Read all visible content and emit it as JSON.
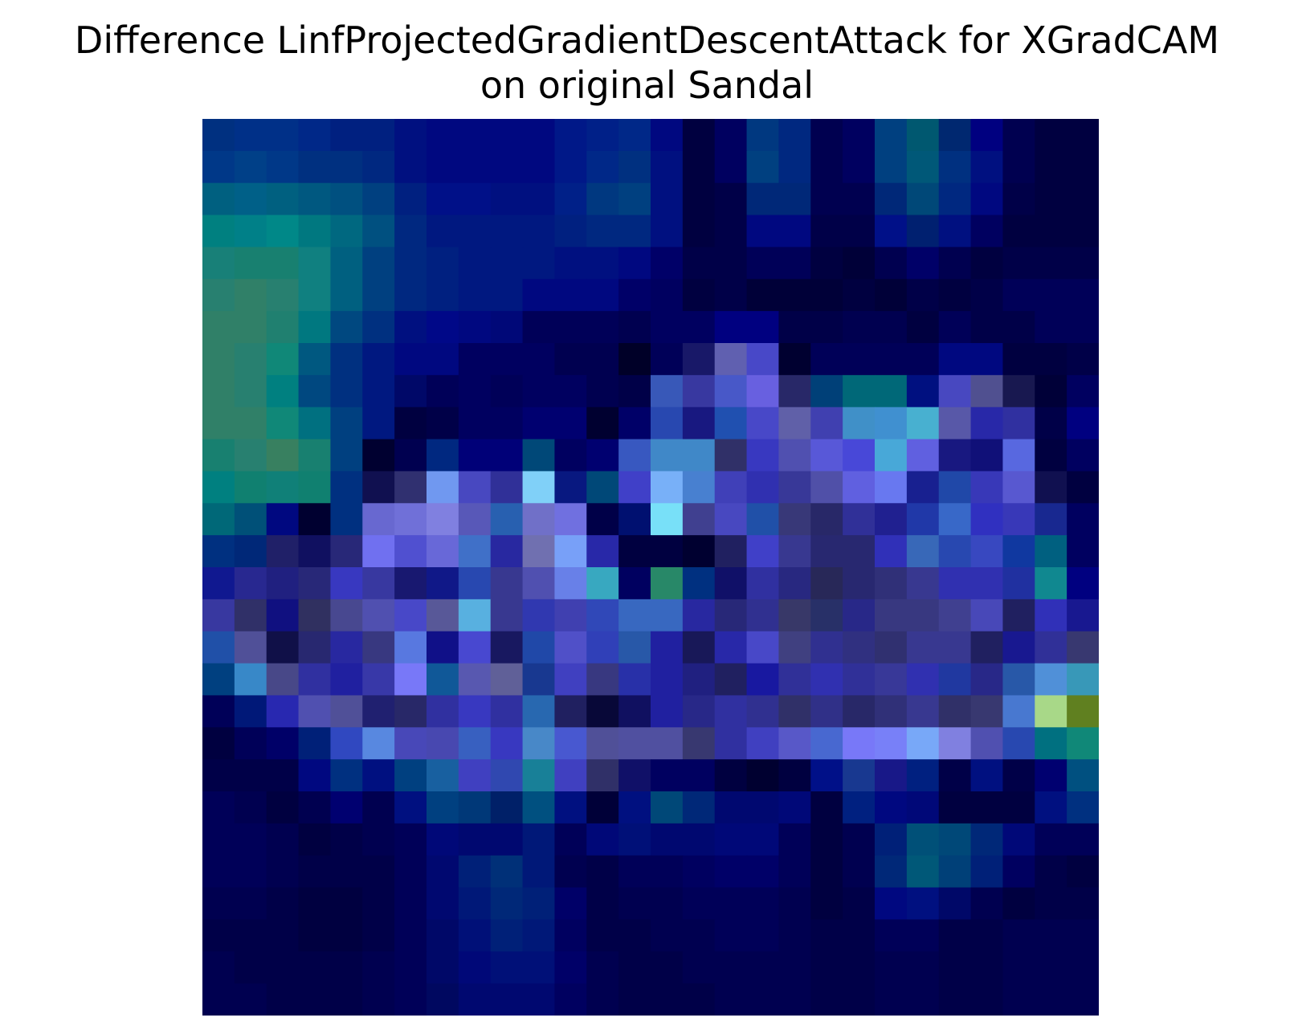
{
  "title_lines": [
    "Difference LinfProjectedGradientDescentAttack for XGradCAM",
    "on original Sandal"
  ],
  "chart_data": {
    "type": "heatmap",
    "title": "Difference LinfProjectedGradientDescentAttack for XGradCAM on original Sandal",
    "rows": 28,
    "cols": 28,
    "axes": "off",
    "grid": false,
    "legend": "none",
    "colors": [
      [
        "#003080",
        "#003088",
        "#003088",
        "#002888",
        "#002080",
        "#002080",
        "#001080",
        "#000880",
        "#000880",
        "#000880",
        "#000880",
        "#001888",
        "#002088",
        "#002888",
        "#000880",
        "#000040",
        "#000060",
        "#003880",
        "#002880",
        "#000050",
        "#000060",
        "#004080",
        "#005870",
        "#002870",
        "#000080",
        "#000050",
        "#000040",
        "#000040"
      ],
      [
        "#003888",
        "#004088",
        "#003888",
        "#003080",
        "#003080",
        "#002880",
        "#001080",
        "#000880",
        "#000880",
        "#000880",
        "#000880",
        "#001888",
        "#002888",
        "#003080",
        "#001080",
        "#000040",
        "#000060",
        "#004080",
        "#002880",
        "#000050",
        "#000060",
        "#004080",
        "#005878",
        "#003080",
        "#001080",
        "#000050",
        "#000040",
        "#000040"
      ],
      [
        "#006080",
        "#006088",
        "#006080",
        "#005880",
        "#005080",
        "#004080",
        "#002080",
        "#001088",
        "#001088",
        "#001080",
        "#001080",
        "#002088",
        "#003880",
        "#004080",
        "#001080",
        "#000040",
        "#000048",
        "#002878",
        "#002878",
        "#000050",
        "#000050",
        "#002878",
        "#004878",
        "#002880",
        "#000880",
        "#000048",
        "#000040",
        "#000040"
      ],
      [
        "#008080",
        "#008088",
        "#008888",
        "#007880",
        "#006880",
        "#005080",
        "#002880",
        "#001880",
        "#001880",
        "#001880",
        "#001880",
        "#002080",
        "#002880",
        "#002880",
        "#001080",
        "#000040",
        "#000048",
        "#000880",
        "#000880",
        "#000048",
        "#000048",
        "#001088",
        "#002070",
        "#001080",
        "#000060",
        "#000040",
        "#000040",
        "#000040"
      ],
      [
        "#188078",
        "#188070",
        "#188070",
        "#108080",
        "#006080",
        "#004080",
        "#002880",
        "#002080",
        "#001880",
        "#001880",
        "#001880",
        "#001080",
        "#001080",
        "#000880",
        "#000068",
        "#000048",
        "#000048",
        "#000058",
        "#000058",
        "#000040",
        "#000038",
        "#000050",
        "#000068",
        "#000050",
        "#000040",
        "#000048",
        "#000048",
        "#000048"
      ],
      [
        "#288070",
        "#308068",
        "#288070",
        "#108080",
        "#006080",
        "#004080",
        "#002880",
        "#002080",
        "#001880",
        "#001880",
        "#000880",
        "#000880",
        "#000880",
        "#000068",
        "#000060",
        "#000040",
        "#000048",
        "#000038",
        "#000038",
        "#000038",
        "#000040",
        "#000038",
        "#000048",
        "#000040",
        "#000048",
        "#000058",
        "#000058",
        "#000058"
      ],
      [
        "#308068",
        "#308068",
        "#208070",
        "#007880",
        "#004880",
        "#003080",
        "#001080",
        "#000888",
        "#000880",
        "#000878",
        "#000058",
        "#000058",
        "#000058",
        "#000050",
        "#000060",
        "#000060",
        "#000080",
        "#000080",
        "#000048",
        "#000048",
        "#000050",
        "#000050",
        "#000040",
        "#000058",
        "#000048",
        "#000048",
        "#000058",
        "#000058"
      ],
      [
        "#308068",
        "#288070",
        "#108878",
        "#005880",
        "#003080",
        "#001880",
        "#000880",
        "#000880",
        "#000060",
        "#000060",
        "#000060",
        "#000050",
        "#000050",
        "#000028",
        "#000058",
        "#181868",
        "#6060b0",
        "#4848c8",
        "#000030",
        "#000058",
        "#000058",
        "#000058",
        "#000058",
        "#000880",
        "#000880",
        "#000040",
        "#000040",
        "#000048"
      ],
      [
        "#308068",
        "#288070",
        "#008080",
        "#004880",
        "#003080",
        "#001880",
        "#000868",
        "#000058",
        "#000060",
        "#000058",
        "#000060",
        "#000060",
        "#000050",
        "#000048",
        "#3858b8",
        "#3838a0",
        "#4858c8",
        "#6860e0",
        "#282868",
        "#004078",
        "#006878",
        "#006878",
        "#001080",
        "#4848c0",
        "#505090",
        "#181850",
        "#000038",
        "#000060"
      ],
      [
        "#308068",
        "#308068",
        "#108878",
        "#007080",
        "#004080",
        "#001880",
        "#000040",
        "#000048",
        "#000060",
        "#000060",
        "#000070",
        "#000070",
        "#000030",
        "#000068",
        "#2848b0",
        "#181880",
        "#2050b0",
        "#4848c8",
        "#6060a8",
        "#4040b0",
        "#4090c8",
        "#4090d0",
        "#48b0d0",
        "#5858a8",
        "#2828a8",
        "#3030a0",
        "#000048",
        "#000080"
      ],
      [
        "#188070",
        "#288070",
        "#388060",
        "#188070",
        "#004080",
        "#000030",
        "#000050",
        "#002880",
        "#000078",
        "#000078",
        "#004878",
        "#000060",
        "#000070",
        "#3858c0",
        "#4088c8",
        "#4088c8",
        "#303068",
        "#3838c0",
        "#5050b0",
        "#5858d8",
        "#4848d8",
        "#48a8d8",
        "#6060e0",
        "#181880",
        "#101078",
        "#5868e0",
        "#000040",
        "#000060"
      ],
      [
        "#008080",
        "#108070",
        "#108078",
        "#108070",
        "#003080",
        "#101050",
        "#303070",
        "#7098f0",
        "#4848c0",
        "#303098",
        "#80d0f8",
        "#081880",
        "#004878",
        "#4040c8",
        "#78b0f8",
        "#4880d0",
        "#4040b8",
        "#3030b0",
        "#383898",
        "#5050a8",
        "#6060e0",
        "#6878f0",
        "#182090",
        "#2048a8",
        "#3838b8",
        "#5858d0",
        "#101050",
        "#000040"
      ],
      [
        "#006878",
        "#005078",
        "#000880",
        "#000030",
        "#003080",
        "#6868d0",
        "#7070d8",
        "#8080e0",
        "#5858b8",
        "#2860b0",
        "#7070c8",
        "#7070e0",
        "#000048",
        "#001070",
        "#78e0f8",
        "#404090",
        "#4848c0",
        "#2050a8",
        "#383878",
        "#282868",
        "#303098",
        "#202090",
        "#2038a8",
        "#3868c8",
        "#3030c0",
        "#3838b8",
        "#182890",
        "#000060"
      ],
      [
        "#003080",
        "#002878",
        "#202068",
        "#101060",
        "#282878",
        "#7070f0",
        "#5050d0",
        "#6868d8",
        "#4070c8",
        "#2828a0",
        "#7070b0",
        "#78a0f8",
        "#2828a8",
        "#000040",
        "#000040",
        "#000030",
        "#202060",
        "#4040c8",
        "#383890",
        "#282870",
        "#282870",
        "#3030b8",
        "#3868b8",
        "#2848b0",
        "#3848c0",
        "#1038a0",
        "#006080",
        "#000060"
      ],
      [
        "#101890",
        "#282890",
        "#202080",
        "#282878",
        "#3838c0",
        "#3838a0",
        "#181870",
        "#101888",
        "#2848b0",
        "#383890",
        "#5050b0",
        "#6880e8",
        "#38a8c0",
        "#000060",
        "#288868",
        "#003080",
        "#101068",
        "#3030a0",
        "#282880",
        "#282858",
        "#282870",
        "#303078",
        "#383890",
        "#3030b0",
        "#3030b0",
        "#2030a0",
        "#108890",
        "#000080"
      ],
      [
        "#3838a0",
        "#303068",
        "#101080",
        "#303060",
        "#484890",
        "#5050b0",
        "#4848c8",
        "#585898",
        "#58b0e0",
        "#383890",
        "#3038b0",
        "#4040b0",
        "#3048b8",
        "#3868c0",
        "#3868c0",
        "#2828a0",
        "#282878",
        "#303090",
        "#383868",
        "#283068",
        "#282888",
        "#383880",
        "#383880",
        "#404090",
        "#4848b8",
        "#202060",
        "#3030b8",
        "#181890"
      ],
      [
        "#2050a8",
        "#505098",
        "#101048",
        "#282870",
        "#2828a0",
        "#383880",
        "#5878e0",
        "#101088",
        "#4848d0",
        "#181860",
        "#2048a8",
        "#5050c8",
        "#3040b8",
        "#2858a8",
        "#2020a0",
        "#181858",
        "#2828a8",
        "#4848c8",
        "#404080",
        "#303090",
        "#303080",
        "#303070",
        "#383890",
        "#383890",
        "#202060",
        "#181890",
        "#303098",
        "#383870"
      ],
      [
        "#004080",
        "#3888c8",
        "#484888",
        "#3030a0",
        "#2020a0",
        "#3838a8",
        "#7878f8",
        "#105898",
        "#5858b0",
        "#606098",
        "#183890",
        "#4040c0",
        "#383880",
        "#2830a8",
        "#2020a0",
        "#202080",
        "#202060",
        "#1818a0",
        "#303098",
        "#3030b0",
        "#303098",
        "#383898",
        "#3030b0",
        "#2038a0",
        "#282888",
        "#2858a8",
        "#5090d8",
        "#3898b8"
      ],
      [
        "#000058",
        "#001878",
        "#2828b0",
        "#5050b0",
        "#505098",
        "#202070",
        "#282868",
        "#3030a0",
        "#3838c0",
        "#3030a0",
        "#2868b0",
        "#202060",
        "#080838",
        "#101060",
        "#2020a0",
        "#282888",
        "#3030a0",
        "#303090",
        "#303068",
        "#303088",
        "#282868",
        "#303078",
        "#383890",
        "#303068",
        "#383870",
        "#4878d0",
        "#a8d888",
        "#608020"
      ],
      [
        "#000040",
        "#000058",
        "#000068",
        "#002078",
        "#3048c0",
        "#5888e0",
        "#4848b8",
        "#4848b0",
        "#3860c0",
        "#3838c0",
        "#4888c8",
        "#4858d0",
        "#505098",
        "#5050a0",
        "#5050a0",
        "#383870",
        "#3030a0",
        "#4040c0",
        "#5858c8",
        "#4868d0",
        "#7878f8",
        "#7880f8",
        "#78a8f8",
        "#8080e0",
        "#5050b0",
        "#2848b0",
        "#007080",
        "#108878"
      ],
      [
        "#000048",
        "#000048",
        "#000048",
        "#000880",
        "#003080",
        "#001080",
        "#004080",
        "#1860a0",
        "#4040c0",
        "#3048b0",
        "#188098",
        "#4040c0",
        "#303068",
        "#101068",
        "#000060",
        "#000060",
        "#000040",
        "#000030",
        "#000040",
        "#001088",
        "#183890",
        "#181888",
        "#002080",
        "#000048",
        "#001080",
        "#000048",
        "#000070",
        "#005080"
      ],
      [
        "#000058",
        "#000050",
        "#000040",
        "#000050",
        "#000070",
        "#000050",
        "#001080",
        "#004080",
        "#003878",
        "#002068",
        "#005080",
        "#001080",
        "#000038",
        "#001080",
        "#004878",
        "#002878",
        "#000870",
        "#000870",
        "#000878",
        "#000040",
        "#002080",
        "#000880",
        "#000878",
        "#000040",
        "#000040",
        "#000040",
        "#001080",
        "#003080"
      ],
      [
        "#000058",
        "#000058",
        "#000050",
        "#000040",
        "#000048",
        "#000050",
        "#000058",
        "#000878",
        "#000870",
        "#000870",
        "#001878",
        "#000058",
        "#000878",
        "#001078",
        "#000870",
        "#000870",
        "#000878",
        "#000878",
        "#000058",
        "#000040",
        "#000050",
        "#002078",
        "#005078",
        "#004878",
        "#002878",
        "#000878",
        "#000058",
        "#000058"
      ],
      [
        "#000058",
        "#000058",
        "#000050",
        "#000048",
        "#000048",
        "#000048",
        "#000058",
        "#000870",
        "#002078",
        "#003078",
        "#001878",
        "#000050",
        "#000048",
        "#000058",
        "#000058",
        "#000060",
        "#000068",
        "#000068",
        "#000058",
        "#000040",
        "#000050",
        "#002878",
        "#005878",
        "#004078",
        "#002078",
        "#000060",
        "#000048",
        "#000040"
      ],
      [
        "#000050",
        "#000050",
        "#000048",
        "#000040",
        "#000040",
        "#000048",
        "#000058",
        "#000870",
        "#001878",
        "#002878",
        "#002078",
        "#000068",
        "#000048",
        "#000050",
        "#000050",
        "#000058",
        "#000058",
        "#000058",
        "#000050",
        "#000040",
        "#000048",
        "#000880",
        "#001080",
        "#000868",
        "#000050",
        "#000040",
        "#000048",
        "#000048"
      ],
      [
        "#000048",
        "#000048",
        "#000048",
        "#000040",
        "#000040",
        "#000048",
        "#000058",
        "#000868",
        "#001078",
        "#002078",
        "#001878",
        "#000060",
        "#000048",
        "#000048",
        "#000050",
        "#000050",
        "#000058",
        "#000058",
        "#000050",
        "#000048",
        "#000048",
        "#000058",
        "#000058",
        "#000048",
        "#000048",
        "#000050",
        "#000050",
        "#000050"
      ],
      [
        "#000050",
        "#000048",
        "#000048",
        "#000048",
        "#000048",
        "#000050",
        "#000058",
        "#000868",
        "#000878",
        "#001078",
        "#001078",
        "#000068",
        "#000050",
        "#000048",
        "#000048",
        "#000050",
        "#000050",
        "#000050",
        "#000050",
        "#000048",
        "#000048",
        "#000050",
        "#000050",
        "#000048",
        "#000048",
        "#000050",
        "#000050",
        "#000050"
      ],
      [
        "#000050",
        "#000050",
        "#000048",
        "#000048",
        "#000048",
        "#000050",
        "#000058",
        "#000860",
        "#000870",
        "#000870",
        "#000870",
        "#000060",
        "#000050",
        "#000048",
        "#000048",
        "#000048",
        "#000050",
        "#000050",
        "#000050",
        "#000048",
        "#000048",
        "#000050",
        "#000050",
        "#000048",
        "#000048",
        "#000050",
        "#000050",
        "#000050"
      ]
    ]
  }
}
